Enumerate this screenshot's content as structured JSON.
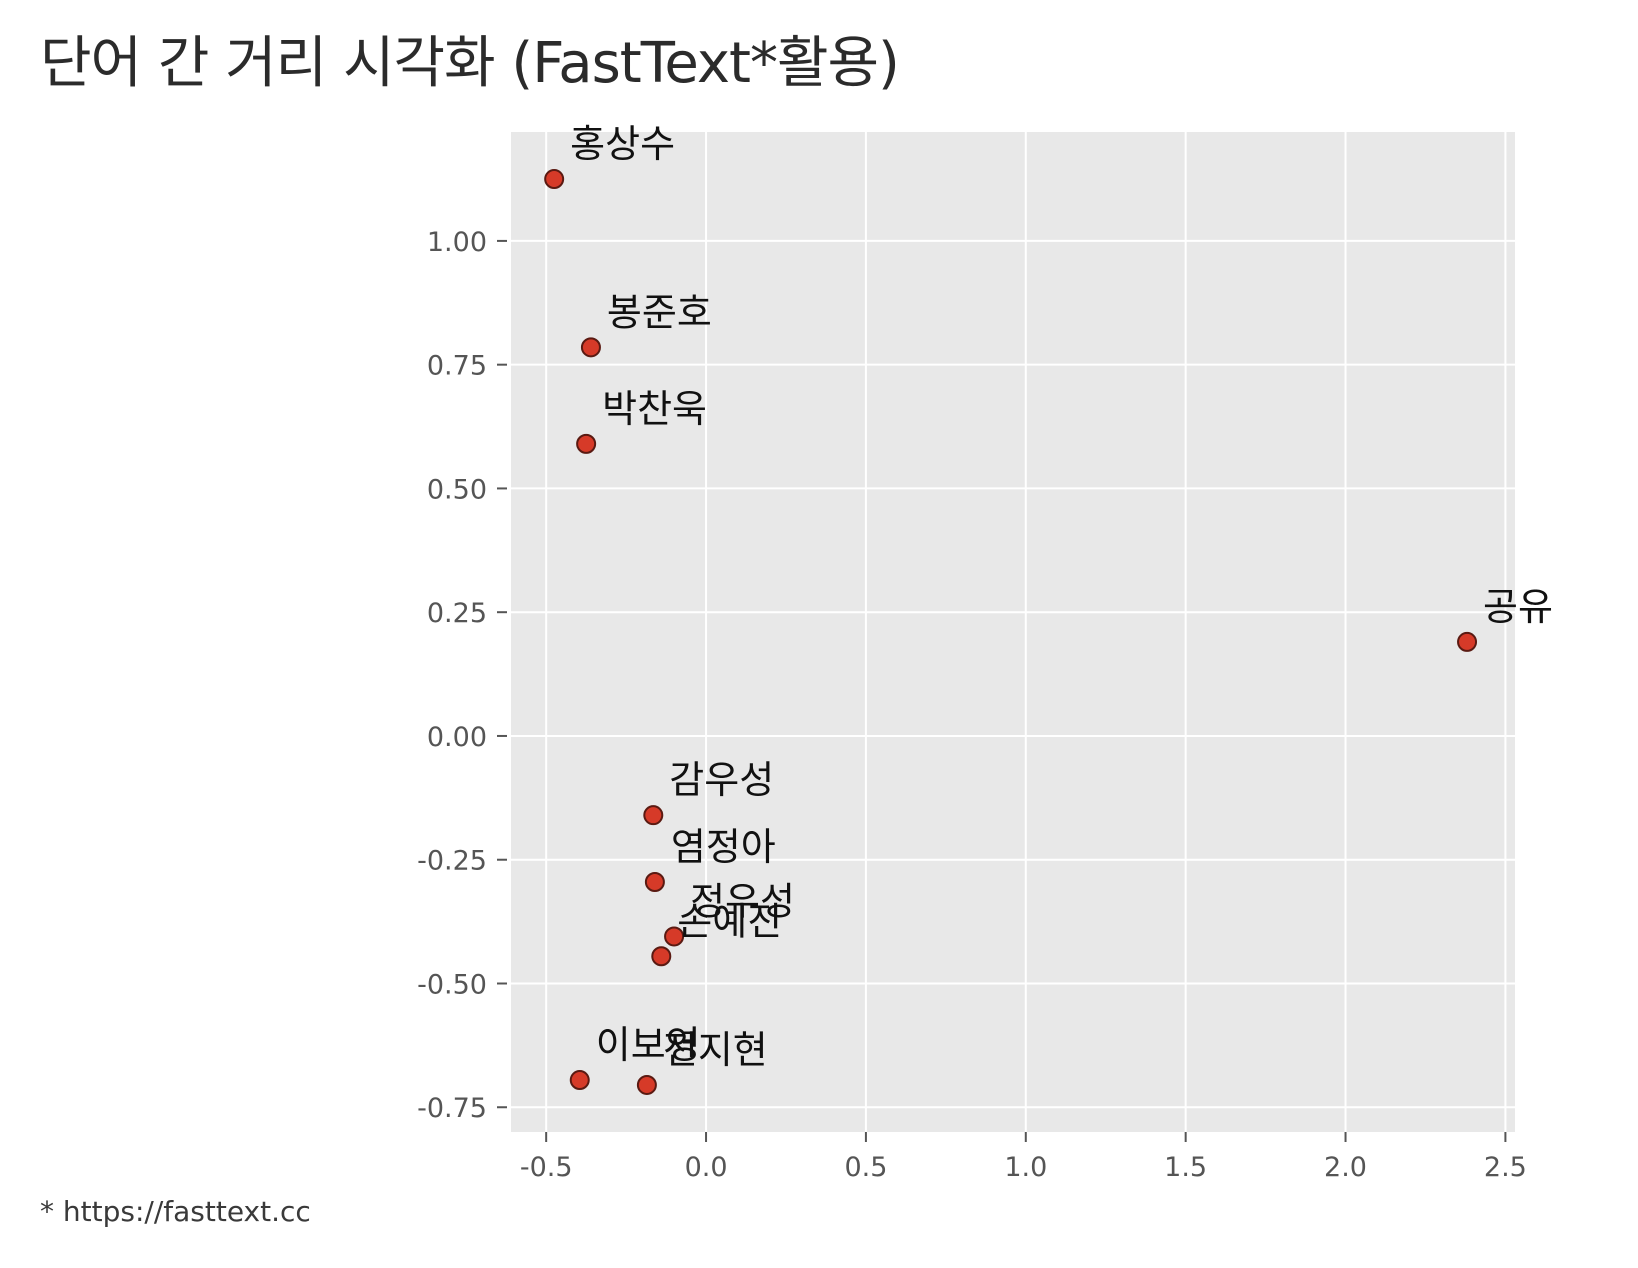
{
  "header": {
    "title": "단어 간 거리 시각화 (FastText*활용)"
  },
  "footer": {
    "note": "* https://fasttext.cc"
  },
  "chart_data": {
    "type": "scatter",
    "title": "",
    "xlabel": "",
    "ylabel": "",
    "xlim": [
      -0.61,
      2.53
    ],
    "ylim": [
      -0.8,
      1.22
    ],
    "xticks": [
      -0.5,
      0.0,
      0.5,
      1.0,
      1.5,
      2.0,
      2.5
    ],
    "xtick_labels": [
      "-0.5",
      "0.0",
      "0.5",
      "1.0",
      "1.5",
      "2.0",
      "2.5"
    ],
    "yticks": [
      -0.75,
      -0.5,
      -0.25,
      0.0,
      0.25,
      0.5,
      0.75,
      1.0
    ],
    "ytick_labels": [
      "-0.75",
      "-0.50",
      "-0.25",
      "0.00",
      "0.25",
      "0.50",
      "0.75",
      "1.00"
    ],
    "grid": true,
    "background_color": "#e8e8e8",
    "grid_color": "#ffffff",
    "marker_color": "#d63a28",
    "marker_edge_color": "#5a1a12",
    "points": [
      {
        "label": "홍상수",
        "x": -0.475,
        "y": 1.125
      },
      {
        "label": "봉준호",
        "x": -0.36,
        "y": 0.785
      },
      {
        "label": "박찬욱",
        "x": -0.375,
        "y": 0.59
      },
      {
        "label": "공유",
        "x": 2.38,
        "y": 0.19
      },
      {
        "label": "감우성",
        "x": -0.165,
        "y": -0.16
      },
      {
        "label": "염정아",
        "x": -0.16,
        "y": -0.295
      },
      {
        "label": "정우성",
        "x": -0.1,
        "y": -0.405
      },
      {
        "label": "손예진",
        "x": -0.14,
        "y": -0.445
      },
      {
        "label": "이보영",
        "x": -0.395,
        "y": -0.695
      },
      {
        "label": "전지현",
        "x": -0.185,
        "y": -0.705
      }
    ]
  }
}
